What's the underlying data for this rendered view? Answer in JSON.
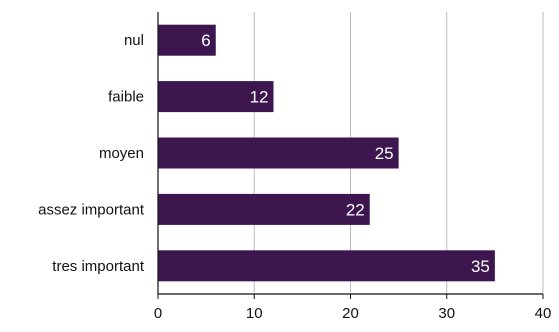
{
  "chart_data": {
    "type": "bar",
    "orientation": "horizontal",
    "categories": [
      "nul",
      "faible",
      "moyen",
      "assez important",
      "tres important"
    ],
    "values": [
      6,
      12,
      25,
      22,
      35
    ],
    "xlim": [
      0,
      40
    ],
    "xticks": [
      0,
      10,
      20,
      30,
      40
    ],
    "grid": "vertical",
    "bar_color": "#3d1650",
    "gridline_color": "#bbbbbb"
  }
}
